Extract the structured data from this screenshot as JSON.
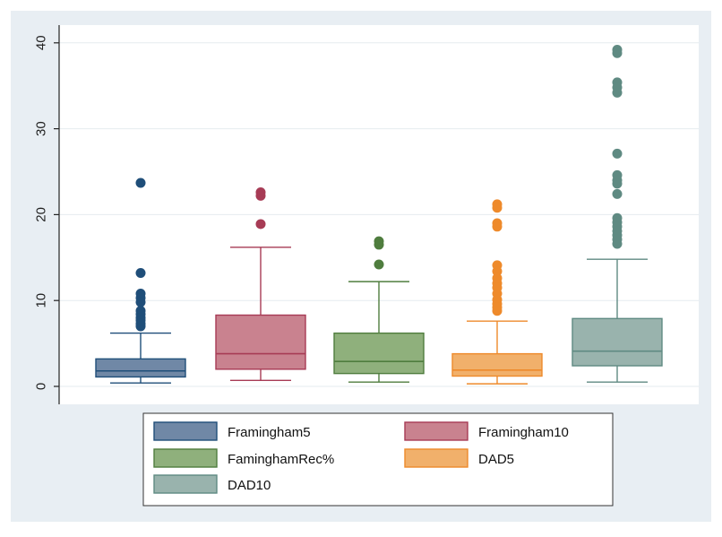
{
  "chart_data": {
    "type": "box",
    "y_ticks": [
      0,
      10,
      20,
      30,
      40
    ],
    "ylim": [
      -2,
      42
    ],
    "grid": true,
    "legend_position": "bottom",
    "series": [
      {
        "name": "Framingham5",
        "color": "#7088a6",
        "outlier_color": "#1f4e79",
        "whisker_low": 0.4,
        "q1": 1.1,
        "median": 1.8,
        "q3": 3.2,
        "whisker_high": 6.2,
        "outliers": [
          23.7,
          13.2,
          10.8,
          10.3,
          9.8,
          8.8,
          8.4,
          8.0,
          7.7,
          7.3,
          7.0
        ]
      },
      {
        "name": "Framingham10",
        "color": "#c9828f",
        "outlier_color": "#a73b55",
        "whisker_low": 0.7,
        "q1": 2.0,
        "median": 3.8,
        "q3": 8.3,
        "whisker_high": 16.2,
        "outliers": [
          22.6,
          22.2,
          18.9
        ]
      },
      {
        "name": "FaminghamRec%",
        "color": "#8fb07c",
        "outlier_color": "#4f7d3e",
        "whisker_low": 0.5,
        "q1": 1.5,
        "median": 2.9,
        "q3": 6.2,
        "whisker_high": 12.2,
        "outliers": [
          16.9,
          16.5,
          14.2
        ]
      },
      {
        "name": "DAD5",
        "color": "#f1b06b",
        "outlier_color": "#ee8a2b",
        "whisker_low": 0.3,
        "q1": 1.2,
        "median": 1.9,
        "q3": 3.8,
        "whisker_high": 7.6,
        "outliers": [
          21.2,
          20.8,
          19.0,
          18.6,
          14.1,
          13.4,
          12.6,
          12.0,
          11.5,
          10.8,
          10.1,
          9.6,
          9.2,
          8.8
        ]
      },
      {
        "name": "DAD10",
        "color": "#99b3ad",
        "outlier_color": "#5f8a82",
        "whisker_low": 0.5,
        "q1": 2.4,
        "median": 4.1,
        "q3": 7.9,
        "whisker_high": 14.8,
        "outliers": [
          39.2,
          38.8,
          35.4,
          34.8,
          34.2,
          27.1,
          24.6,
          24.0,
          23.6,
          22.4,
          19.6,
          19.1,
          18.6,
          18.1,
          17.6,
          17.1,
          16.6
        ]
      }
    ]
  }
}
